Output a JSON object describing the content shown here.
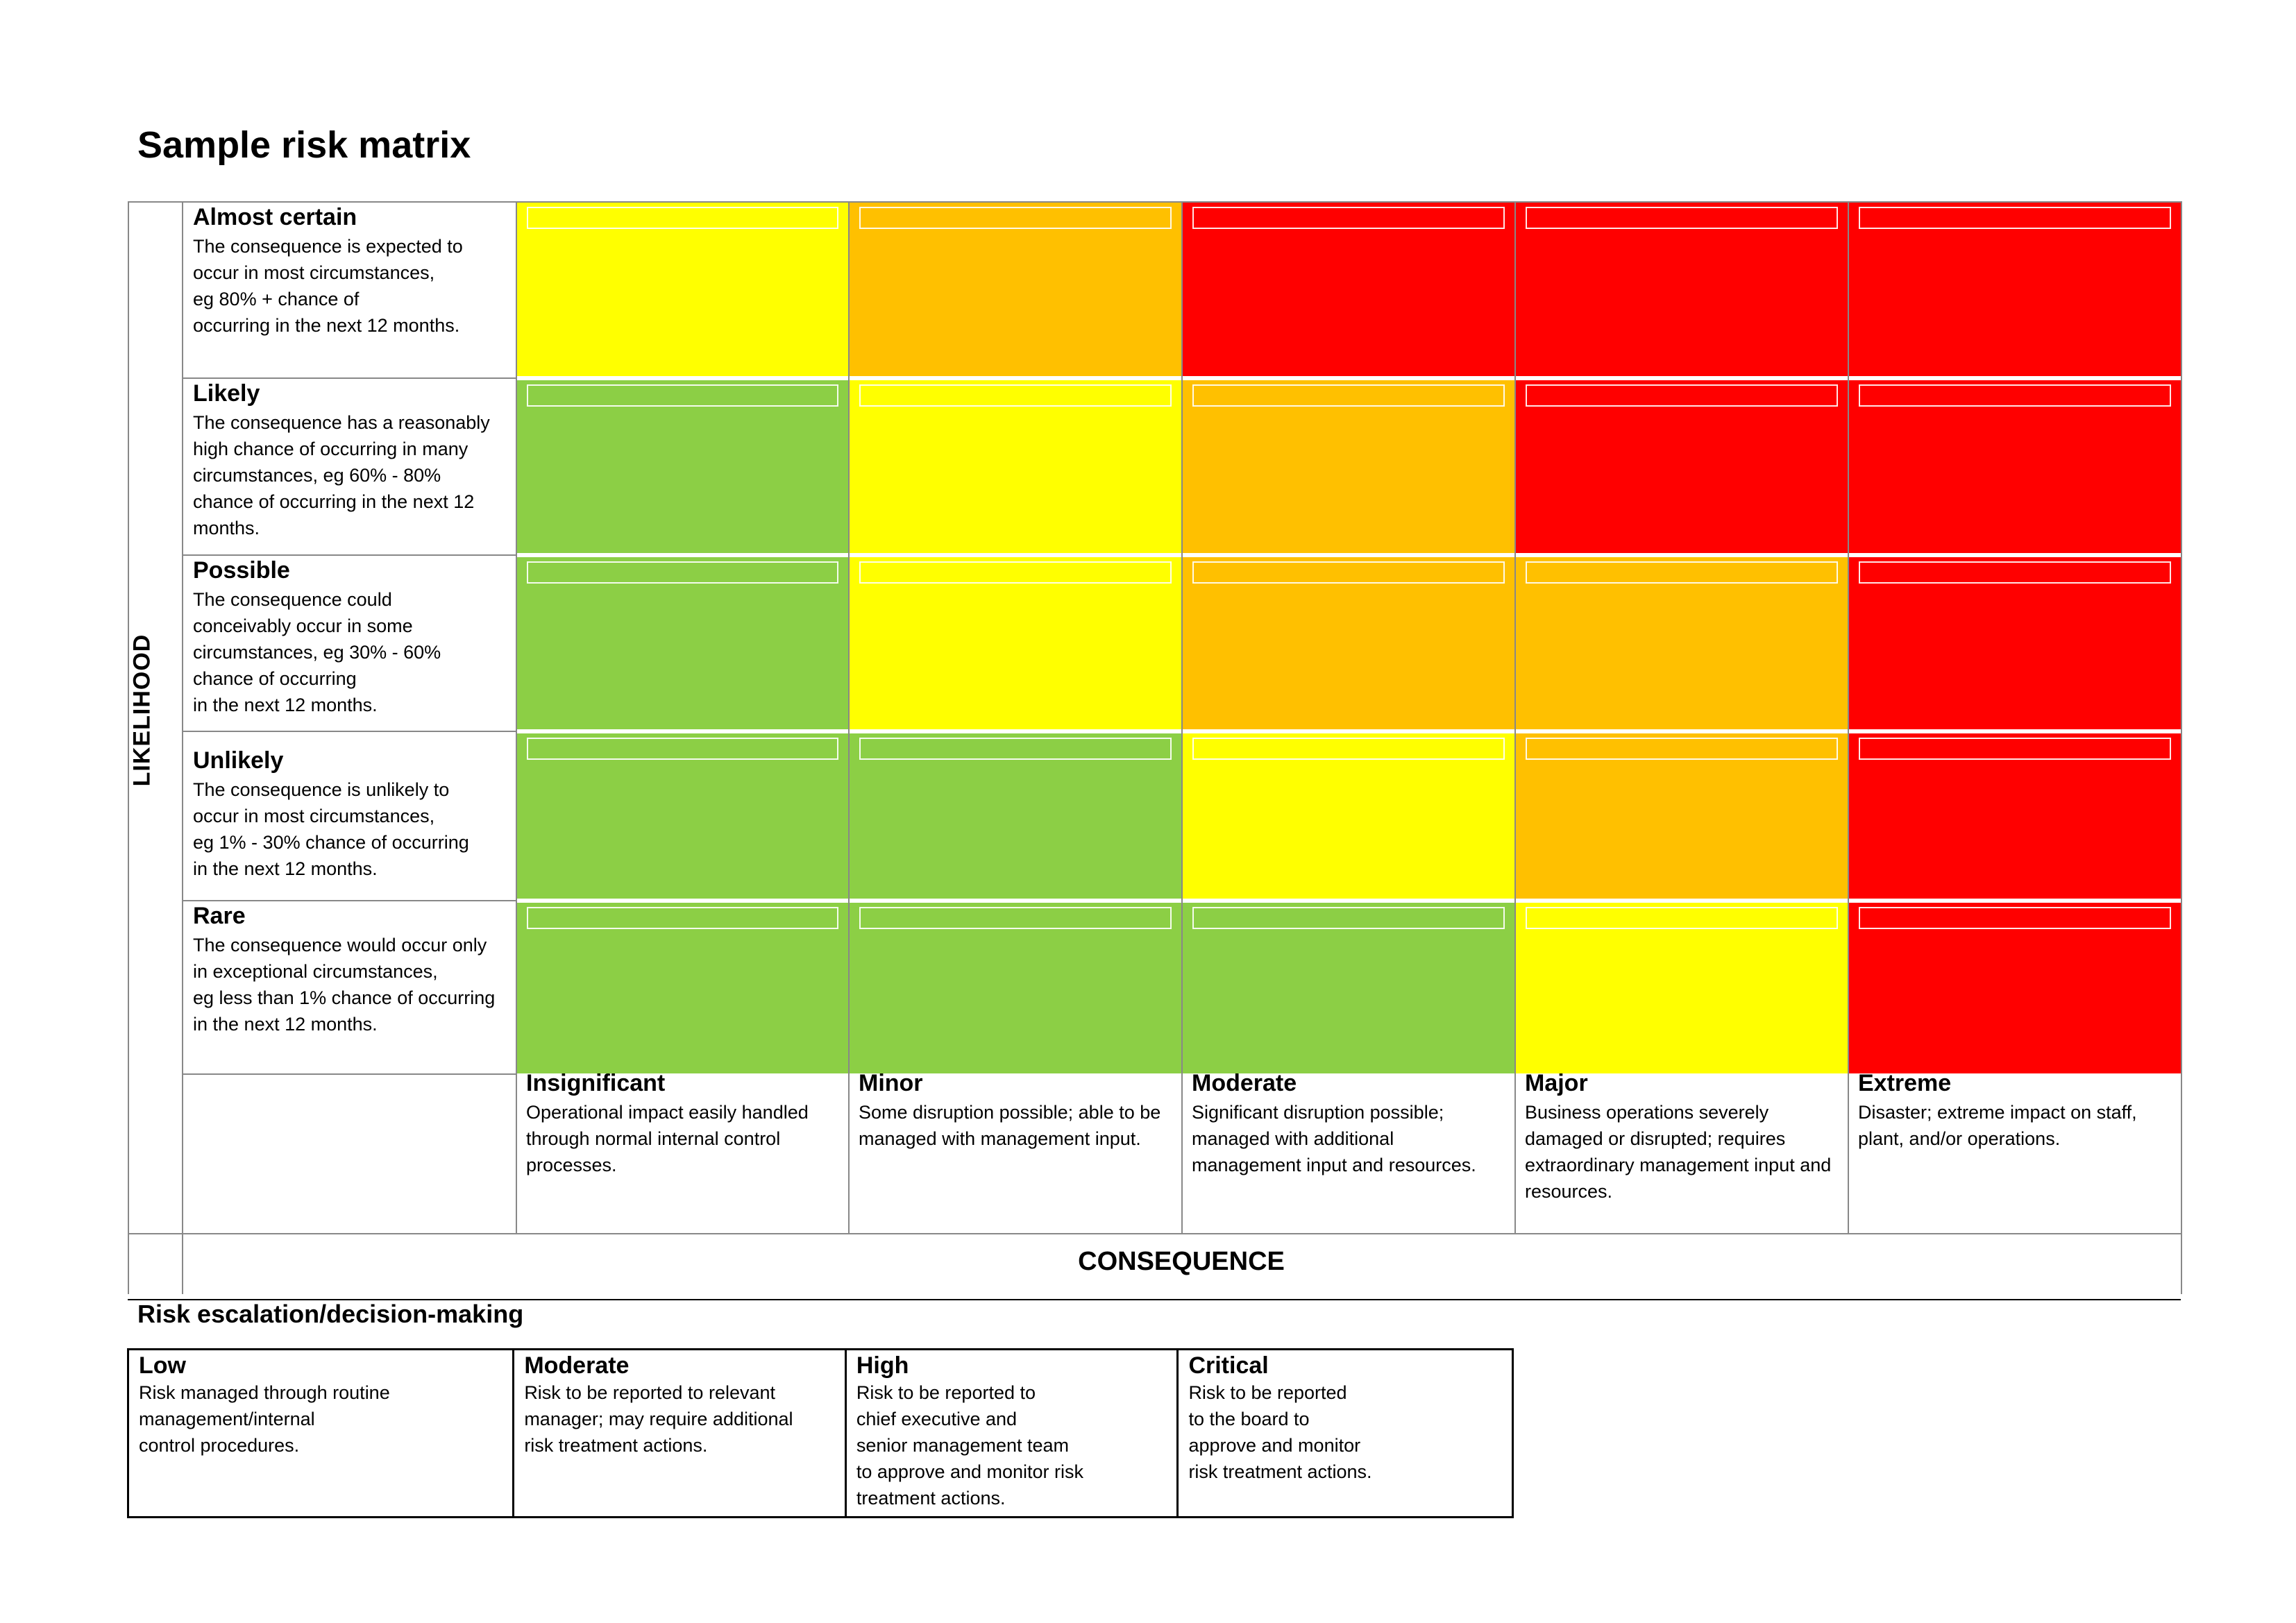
{
  "page": {
    "title": "Sample risk matrix"
  },
  "matrix": {
    "likelihood_title": "LIKELIHOOD",
    "consequence_title": "CONSEQUENCE",
    "likelihood_rows": [
      {
        "label": "Almost certain",
        "desc": "The consequence is expected to\noccur in most circumstances,\neg 80% + chance of\noccurring in the next 12 months.",
        "cells": [
          "yellow",
          "orange",
          "red",
          "red",
          "red"
        ]
      },
      {
        "label": "Likely",
        "desc": "The consequence has a reasonably\nhigh chance of occurring in many\ncircumstances, eg 60% - 80%\nchance of occurring in the next 12\nmonths.",
        "cells": [
          "green",
          "yellow",
          "orange",
          "red",
          "red"
        ]
      },
      {
        "label": "Possible",
        "desc": "The consequence could\nconceivably occur in some\ncircumstances, eg 30% - 60%\nchance of occurring\nin the next 12 months.",
        "cells": [
          "green",
          "yellow",
          "orange",
          "orange",
          "red"
        ]
      },
      {
        "label": "Unlikely",
        "desc": "The consequence is unlikely to\noccur in most circumstances,\neg 1% - 30% chance of occurring\nin the next 12 months.",
        "cells": [
          "green",
          "green",
          "yellow",
          "orange",
          "red"
        ]
      },
      {
        "label": "Rare",
        "desc": "The consequence would occur only\nin exceptional circumstances,\neg less than 1% chance of occurring\nin the next 12 months.",
        "cells": [
          "green",
          "green",
          "green",
          "yellow",
          "red"
        ]
      }
    ],
    "consequence_cols": [
      {
        "label": "Insignificant",
        "desc": "Operational impact easily handled through normal internal control processes."
      },
      {
        "label": "Minor",
        "desc": "Some disruption possible; able to be managed with management input."
      },
      {
        "label": "Moderate",
        "desc": "Significant disruption possible; managed with additional management input and resources."
      },
      {
        "label": "Major",
        "desc": "Business operations severely damaged or disrupted; requires extraordinary management input and resources."
      },
      {
        "label": "Extreme",
        "desc": "Disaster; extreme impact on staff, plant, and/or operations."
      }
    ],
    "colors": {
      "green": "#8ccf45",
      "yellow": "#ffff00",
      "orange": "#ffc000",
      "red": "#ff0000"
    }
  },
  "escalation": {
    "title": "Risk escalation/decision-making",
    "levels": [
      {
        "label": "Low",
        "desc": "Risk managed through routine\nmanagement/internal\ncontrol procedures."
      },
      {
        "label": "Moderate",
        "desc": "Risk to be reported to relevant\nmanager; may require additional\nrisk treatment actions."
      },
      {
        "label": "High",
        "desc": "Risk to be reported to\nchief executive and\nsenior management team\nto approve and monitor risk\ntreatment actions."
      },
      {
        "label": "Critical",
        "desc": "Risk to be reported\n to the board to\napprove and monitor\nrisk treatment actions."
      }
    ]
  }
}
